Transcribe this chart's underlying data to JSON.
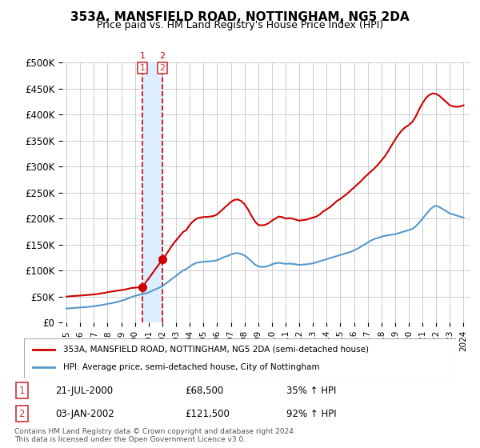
{
  "title": "353A, MANSFIELD ROAD, NOTTINGHAM, NG5 2DA",
  "subtitle": "Price paid vs. HM Land Registry's House Price Index (HPI)",
  "red_label": "353A, MANSFIELD ROAD, NOTTINGHAM, NG5 2DA (semi-detached house)",
  "blue_label": "HPI: Average price, semi-detached house, City of Nottingham",
  "footnote": "Contains HM Land Registry data © Crown copyright and database right 2024.\nThis data is licensed under the Open Government Licence v3.0.",
  "transactions": [
    {
      "id": 1,
      "date": "21-JUL-2000",
      "price": 68500,
      "label": "35% ↑ HPI",
      "x": 2000.55
    },
    {
      "id": 2,
      "date": "03-JAN-2002",
      "price": 121500,
      "label": "92% ↑ HPI",
      "x": 2002.01
    }
  ],
  "hpi_x": [
    1995.0,
    1995.25,
    1995.5,
    1995.75,
    1996.0,
    1996.25,
    1996.5,
    1996.75,
    1997.0,
    1997.25,
    1997.5,
    1997.75,
    1998.0,
    1998.25,
    1998.5,
    1998.75,
    1999.0,
    1999.25,
    1999.5,
    1999.75,
    2000.0,
    2000.25,
    2000.5,
    2000.75,
    2001.0,
    2001.25,
    2001.5,
    2001.75,
    2002.0,
    2002.25,
    2002.5,
    2002.75,
    2003.0,
    2003.25,
    2003.5,
    2003.75,
    2004.0,
    2004.25,
    2004.5,
    2004.75,
    2005.0,
    2005.25,
    2005.5,
    2005.75,
    2006.0,
    2006.25,
    2006.5,
    2006.75,
    2007.0,
    2007.25,
    2007.5,
    2007.75,
    2008.0,
    2008.25,
    2008.5,
    2008.75,
    2009.0,
    2009.25,
    2009.5,
    2009.75,
    2010.0,
    2010.25,
    2010.5,
    2010.75,
    2011.0,
    2011.25,
    2011.5,
    2011.75,
    2012.0,
    2012.25,
    2012.5,
    2012.75,
    2013.0,
    2013.25,
    2013.5,
    2013.75,
    2014.0,
    2014.25,
    2014.5,
    2014.75,
    2015.0,
    2015.25,
    2015.5,
    2015.75,
    2016.0,
    2016.25,
    2016.5,
    2016.75,
    2017.0,
    2017.25,
    2017.5,
    2017.75,
    2018.0,
    2018.25,
    2018.5,
    2018.75,
    2019.0,
    2019.25,
    2019.5,
    2019.75,
    2020.0,
    2020.25,
    2020.5,
    2020.75,
    2021.0,
    2021.25,
    2021.5,
    2021.75,
    2022.0,
    2022.25,
    2022.5,
    2022.75,
    2023.0,
    2023.25,
    2023.5,
    2023.75,
    2024.0
  ],
  "hpi_y": [
    27000,
    27500,
    28000,
    28500,
    29000,
    29500,
    30000,
    30500,
    31500,
    32500,
    33500,
    34500,
    36000,
    37000,
    38500,
    40000,
    42000,
    44000,
    46500,
    49000,
    51500,
    53000,
    54500,
    56000,
    58000,
    61000,
    64000,
    67000,
    70000,
    75000,
    80000,
    85000,
    90000,
    95000,
    100000,
    103000,
    108000,
    112000,
    115000,
    116000,
    117000,
    117500,
    118000,
    118500,
    120000,
    123000,
    126000,
    128000,
    131000,
    133000,
    133500,
    132000,
    129000,
    124000,
    118000,
    112000,
    108000,
    107000,
    107500,
    109000,
    112000,
    114000,
    115000,
    114000,
    113000,
    113500,
    113000,
    112000,
    111000,
    111500,
    112000,
    113000,
    114000,
    116000,
    118000,
    120000,
    122000,
    124000,
    126000,
    128000,
    130000,
    132000,
    134000,
    136000,
    139000,
    142000,
    146000,
    150000,
    154000,
    158000,
    161000,
    163000,
    165000,
    167000,
    168000,
    169000,
    170000,
    172000,
    174000,
    176000,
    178000,
    180000,
    185000,
    192000,
    200000,
    208000,
    216000,
    222000,
    225000,
    222000,
    218000,
    214000,
    210000,
    208000,
    206000,
    204000,
    202000
  ],
  "red_x": [
    1995.0,
    1995.25,
    1995.5,
    1995.75,
    1996.0,
    1996.25,
    1996.5,
    1996.75,
    1997.0,
    1997.25,
    1997.5,
    1997.75,
    1998.0,
    1998.25,
    1998.5,
    1998.75,
    1999.0,
    1999.25,
    1999.5,
    1999.75,
    2000.55,
    2002.01,
    2002.25,
    2002.5,
    2002.75,
    2003.0,
    2003.25,
    2003.5,
    2003.75,
    2004.0,
    2004.25,
    2004.5,
    2004.75,
    2005.0,
    2005.25,
    2005.5,
    2005.75,
    2006.0,
    2006.25,
    2006.5,
    2006.75,
    2007.0,
    2007.25,
    2007.5,
    2007.75,
    2008.0,
    2008.25,
    2008.5,
    2008.75,
    2009.0,
    2009.25,
    2009.5,
    2009.75,
    2010.0,
    2010.25,
    2010.5,
    2010.75,
    2011.0,
    2011.25,
    2011.5,
    2011.75,
    2012.0,
    2012.25,
    2012.5,
    2012.75,
    2013.0,
    2013.25,
    2013.5,
    2013.75,
    2014.0,
    2014.25,
    2014.5,
    2014.75,
    2015.0,
    2015.25,
    2015.5,
    2015.75,
    2016.0,
    2016.25,
    2016.5,
    2016.75,
    2017.0,
    2017.25,
    2017.5,
    2017.75,
    2018.0,
    2018.25,
    2018.5,
    2018.75,
    2019.0,
    2019.25,
    2019.5,
    2019.75,
    2020.0,
    2020.25,
    2020.5,
    2020.75,
    2021.0,
    2021.25,
    2021.5,
    2021.75,
    2022.0,
    2022.25,
    2022.5,
    2022.75,
    2023.0,
    2023.25,
    2023.5,
    2023.75,
    2024.0
  ],
  "red_y": [
    50000,
    50500,
    51000,
    51500,
    52000,
    52500,
    53000,
    53500,
    54000,
    55000,
    56000,
    57000,
    58500,
    59500,
    60500,
    61500,
    62500,
    63500,
    65000,
    66500,
    68500,
    121500,
    130000,
    140000,
    150000,
    158000,
    166000,
    174000,
    178000,
    188000,
    195000,
    200000,
    202000,
    203000,
    203500,
    204000,
    205000,
    208000,
    214000,
    220000,
    226000,
    232000,
    236000,
    237000,
    234000,
    228000,
    218000,
    206000,
    195000,
    188000,
    187000,
    188000,
    191000,
    196000,
    200000,
    204000,
    203000,
    200000,
    201000,
    200000,
    198000,
    196000,
    197000,
    198000,
    200000,
    202000,
    204000,
    208000,
    214000,
    218000,
    222000,
    228000,
    234000,
    238000,
    243000,
    248000,
    254000,
    260000,
    266000,
    272000,
    279000,
    285000,
    291000,
    297000,
    304000,
    312000,
    320000,
    330000,
    341000,
    352000,
    362000,
    370000,
    376000,
    380000,
    386000,
    396000,
    410000,
    422000,
    432000,
    438000,
    441000,
    440000,
    436000,
    430000,
    424000,
    418000,
    416000,
    415000,
    416000,
    418000
  ],
  "ylim": [
    0,
    500000
  ],
  "yticks": [
    0,
    50000,
    100000,
    150000,
    200000,
    250000,
    300000,
    350000,
    400000,
    450000,
    500000
  ],
  "ytick_labels": [
    "£0",
    "£50K",
    "£100K",
    "£150K",
    "£200K",
    "£250K",
    "£300K",
    "£350K",
    "£400K",
    "£450K",
    "£500K"
  ],
  "xtick_years": [
    1995,
    1996,
    1997,
    1998,
    1999,
    2000,
    2001,
    2002,
    2003,
    2004,
    2005,
    2006,
    2007,
    2008,
    2009,
    2010,
    2011,
    2012,
    2013,
    2014,
    2015,
    2016,
    2017,
    2018,
    2019,
    2020,
    2021,
    2022,
    2023,
    2024
  ],
  "red_color": "#cc0000",
  "blue_color": "#5599cc",
  "vline_color": "#cc0000",
  "highlight_fill": "#ddeeff",
  "grid_color": "#cccccc",
  "bg_color": "#ffffff",
  "marker_box_color": "#cc3333"
}
